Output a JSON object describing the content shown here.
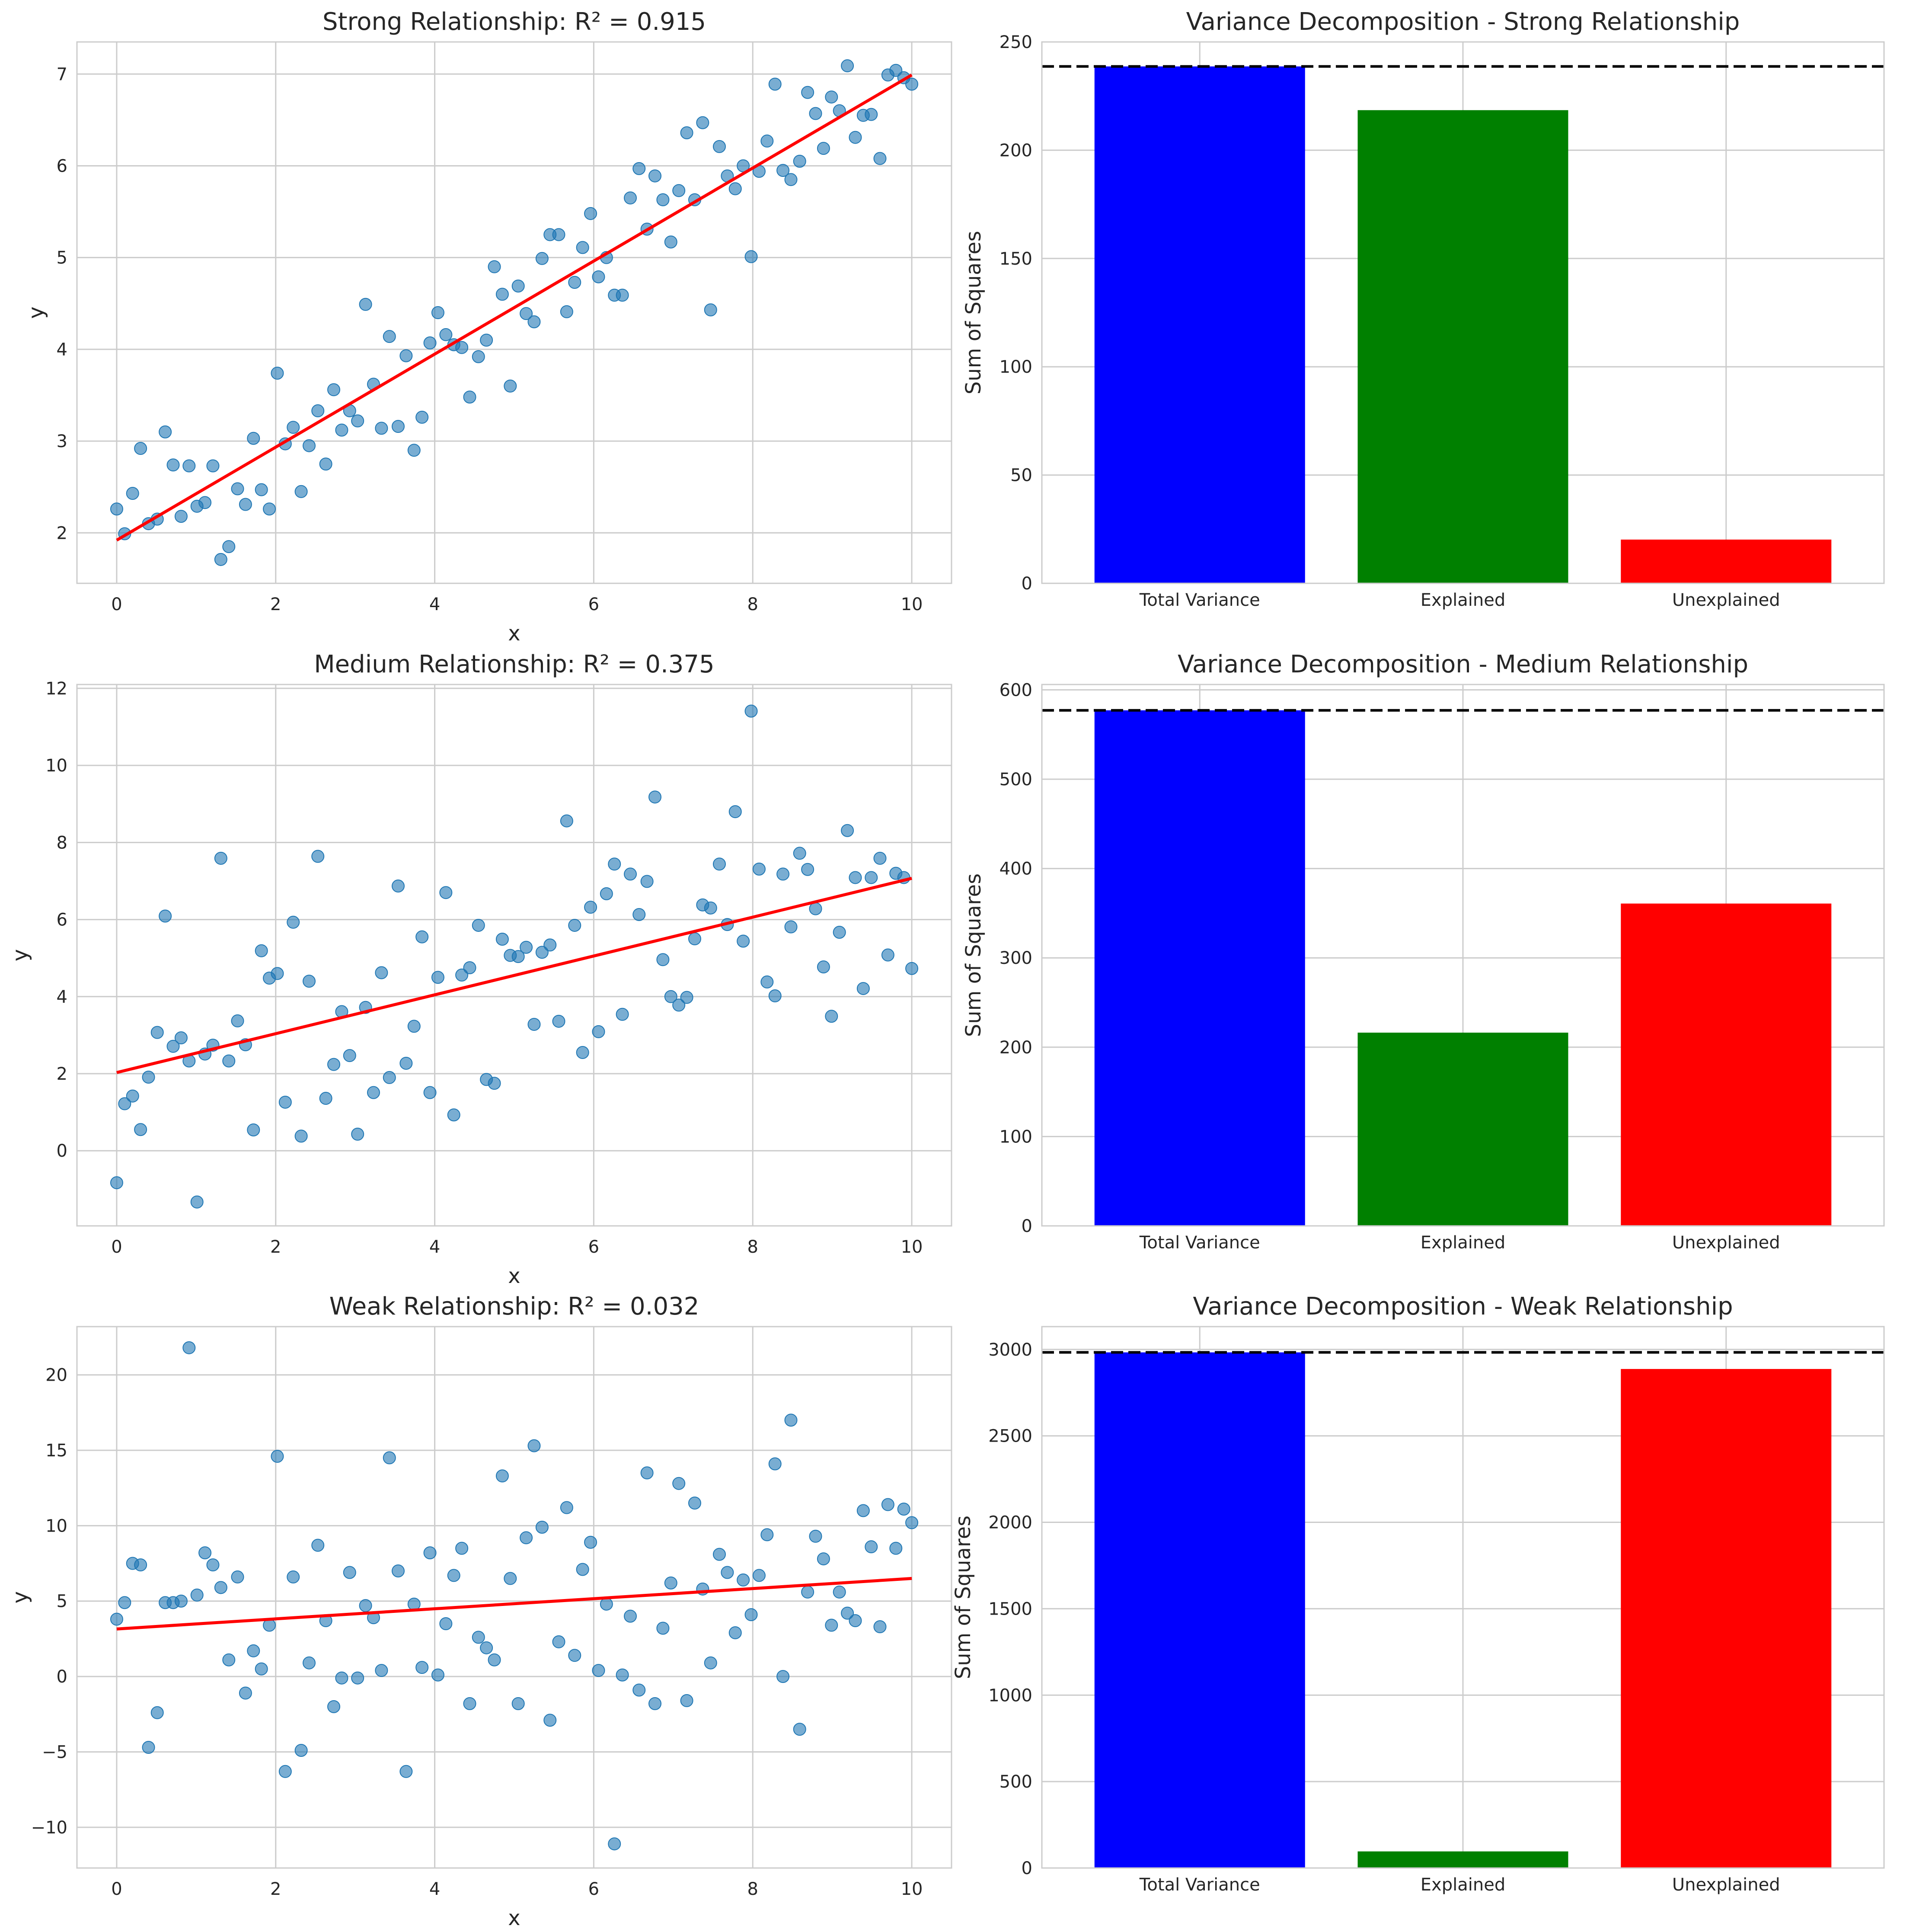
{
  "chart_data": [
    {
      "type": "scatter",
      "title": "Strong Relationship: R² = 0.915",
      "xlabel": "x",
      "ylabel": "y",
      "xlim": [
        -0.5,
        10.5
      ],
      "ylim": [
        1.45,
        7.35
      ],
      "xticks": [
        0,
        2,
        4,
        6,
        8,
        10
      ],
      "yticks": [
        2,
        3,
        4,
        5,
        6,
        7
      ],
      "grid": true,
      "point_color": "#1f77b4",
      "line_color": "#ff0000",
      "fit_line": {
        "x": [
          0,
          10
        ],
        "y": [
          1.92,
          6.99
        ]
      },
      "x": [
        0.0,
        0.1,
        0.2,
        0.3,
        0.4,
        0.51,
        0.61,
        0.71,
        0.81,
        0.91,
        1.01,
        1.11,
        1.21,
        1.31,
        1.41,
        1.52,
        1.62,
        1.72,
        1.82,
        1.92,
        2.02,
        2.12,
        2.22,
        2.32,
        2.42,
        2.53,
        2.63,
        2.73,
        2.83,
        2.93,
        3.03,
        3.13,
        3.23,
        3.33,
        3.43,
        3.54,
        3.64,
        3.74,
        3.84,
        3.94,
        4.04,
        4.14,
        4.24,
        4.34,
        4.44,
        4.55,
        4.65,
        4.75,
        4.85,
        4.95,
        5.05,
        5.15,
        5.25,
        5.35,
        5.45,
        5.56,
        5.66,
        5.76,
        5.86,
        5.96,
        6.06,
        6.16,
        6.26,
        6.36,
        6.46,
        6.57,
        6.67,
        6.77,
        6.87,
        6.97,
        7.07,
        7.17,
        7.27,
        7.37,
        7.47,
        7.58,
        7.68,
        7.78,
        7.88,
        7.98,
        8.08,
        8.18,
        8.28,
        8.38,
        8.48,
        8.59,
        8.69,
        8.79,
        8.89,
        8.99,
        9.09,
        9.19,
        9.29,
        9.39,
        9.49,
        9.6,
        9.7,
        9.8,
        9.9,
        10.0
      ],
      "y": [
        2.26,
        1.99,
        2.43,
        2.92,
        2.1,
        2.15,
        3.1,
        2.74,
        2.18,
        2.73,
        2.29,
        2.33,
        2.73,
        1.71,
        1.85,
        2.48,
        2.31,
        3.03,
        2.47,
        2.26,
        3.74,
        2.97,
        3.15,
        2.45,
        2.95,
        3.33,
        2.75,
        3.56,
        3.12,
        3.33,
        3.22,
        4.49,
        3.62,
        3.14,
        4.14,
        3.16,
        3.93,
        2.9,
        3.26,
        4.07,
        4.4,
        4.16,
        4.05,
        4.02,
        3.48,
        3.92,
        4.1,
        4.9,
        4.6,
        3.6,
        4.69,
        4.39,
        4.3,
        4.99,
        5.25,
        5.25,
        4.41,
        4.73,
        5.11,
        5.48,
        4.79,
        5.0,
        4.59,
        4.59,
        5.65,
        5.97,
        5.31,
        5.89,
        5.63,
        5.17,
        5.73,
        6.36,
        5.63,
        6.47,
        4.43,
        6.21,
        5.89,
        5.75,
        6.0,
        5.01,
        5.94,
        6.27,
        6.89,
        5.95,
        5.85,
        6.05,
        6.8,
        6.57,
        6.19,
        6.75,
        6.6,
        7.09,
        6.31,
        6.55,
        6.56,
        6.08,
        6.99,
        7.04,
        6.96,
        6.89
      ]
    },
    {
      "type": "bar",
      "title": "Variance Decomposition - Strong Relationship",
      "xlabel": "",
      "ylabel": "Sum of Squares",
      "categories": [
        "Total Variance",
        "Explained",
        "Unexplained"
      ],
      "values": [
        238.7,
        218.5,
        20.2
      ],
      "colors": [
        "#0000ff",
        "#008000",
        "#ff0000"
      ],
      "ylim": [
        0,
        250
      ],
      "yticks": [
        0,
        50,
        100,
        150,
        200,
        250
      ],
      "reference_line": 238.7,
      "grid": true
    },
    {
      "type": "scatter",
      "title": "Medium Relationship: R² = 0.375",
      "xlabel": "x",
      "ylabel": "y",
      "xlim": [
        -0.5,
        10.5
      ],
      "ylim": [
        -1.95,
        12.1
      ],
      "xticks": [
        0,
        2,
        4,
        6,
        8,
        10
      ],
      "yticks": [
        0,
        2,
        4,
        6,
        8,
        10,
        12
      ],
      "grid": true,
      "point_color": "#1f77b4",
      "line_color": "#ff0000",
      "fit_line": {
        "x": [
          0,
          10
        ],
        "y": [
          2.03,
          7.07
        ]
      },
      "x": [
        0.0,
        0.1,
        0.2,
        0.3,
        0.4,
        0.51,
        0.61,
        0.71,
        0.81,
        0.91,
        1.01,
        1.11,
        1.21,
        1.31,
        1.41,
        1.52,
        1.62,
        1.72,
        1.82,
        1.92,
        2.02,
        2.12,
        2.22,
        2.32,
        2.42,
        2.53,
        2.63,
        2.73,
        2.83,
        2.93,
        3.03,
        3.13,
        3.23,
        3.33,
        3.43,
        3.54,
        3.64,
        3.74,
        3.84,
        3.94,
        4.04,
        4.14,
        4.24,
        4.34,
        4.44,
        4.55,
        4.65,
        4.75,
        4.85,
        4.95,
        5.05,
        5.15,
        5.25,
        5.35,
        5.45,
        5.56,
        5.66,
        5.76,
        5.86,
        5.96,
        6.06,
        6.16,
        6.26,
        6.36,
        6.46,
        6.57,
        6.67,
        6.77,
        6.87,
        6.97,
        7.07,
        7.17,
        7.27,
        7.37,
        7.47,
        7.58,
        7.68,
        7.78,
        7.88,
        7.98,
        8.08,
        8.18,
        8.28,
        8.38,
        8.48,
        8.59,
        8.69,
        8.79,
        8.89,
        8.99,
        9.09,
        9.19,
        9.29,
        9.39,
        9.49,
        9.6,
        9.7,
        9.8,
        9.9,
        10.0
      ],
      "y": [
        -0.83,
        1.22,
        1.42,
        0.55,
        1.91,
        3.07,
        6.09,
        2.71,
        2.93,
        2.33,
        -1.33,
        2.51,
        2.74,
        7.59,
        2.33,
        3.37,
        2.75,
        0.54,
        5.19,
        4.48,
        4.6,
        1.26,
        5.93,
        0.38,
        4.4,
        7.64,
        1.36,
        2.24,
        3.61,
        2.47,
        0.43,
        3.72,
        1.51,
        4.62,
        1.9,
        6.87,
        2.27,
        3.23,
        5.55,
        1.51,
        4.5,
        6.7,
        0.93,
        4.56,
        4.75,
        5.85,
        1.85,
        1.75,
        5.49,
        5.07,
        5.04,
        5.28,
        3.28,
        5.15,
        5.34,
        3.36,
        8.56,
        5.85,
        2.55,
        6.32,
        3.09,
        6.67,
        7.44,
        3.54,
        7.18,
        6.13,
        6.99,
        9.18,
        4.96,
        4.0,
        3.78,
        3.98,
        5.5,
        6.38,
        6.3,
        7.44,
        5.87,
        8.8,
        5.44,
        11.41,
        7.31,
        4.38,
        4.02,
        7.18,
        5.81,
        7.72,
        7.3,
        6.28,
        4.77,
        3.49,
        5.67,
        8.31,
        7.09,
        4.21,
        7.09,
        7.59,
        5.08,
        7.2,
        7.09,
        4.73
      ]
    },
    {
      "type": "bar",
      "title": "Variance Decomposition - Medium Relationship",
      "xlabel": "",
      "ylabel": "Sum of Squares",
      "categories": [
        "Total Variance",
        "Explained",
        "Unexplained"
      ],
      "values": [
        577.1,
        216.3,
        360.8
      ],
      "colors": [
        "#0000ff",
        "#008000",
        "#ff0000"
      ],
      "ylim": [
        0,
        606
      ],
      "yticks": [
        0,
        100,
        200,
        300,
        400,
        500,
        600
      ],
      "reference_line": 577.1,
      "grid": true
    },
    {
      "type": "scatter",
      "title": "Weak Relationship: R² = 0.032",
      "xlabel": "x",
      "ylabel": "y",
      "xlim": [
        -0.5,
        10.5
      ],
      "ylim": [
        -12.7,
        23.2
      ],
      "xticks": [
        0,
        2,
        4,
        6,
        8,
        10
      ],
      "yticks": [
        -10,
        -5,
        0,
        5,
        10,
        15,
        20
      ],
      "grid": true,
      "point_color": "#1f77b4",
      "line_color": "#ff0000",
      "fit_line": {
        "x": [
          0,
          10
        ],
        "y": [
          3.15,
          6.5
        ]
      },
      "x": [
        0.0,
        0.1,
        0.2,
        0.3,
        0.4,
        0.51,
        0.61,
        0.71,
        0.81,
        0.91,
        1.01,
        1.11,
        1.21,
        1.31,
        1.41,
        1.52,
        1.62,
        1.72,
        1.82,
        1.92,
        2.02,
        2.12,
        2.22,
        2.32,
        2.42,
        2.53,
        2.63,
        2.73,
        2.83,
        2.93,
        3.03,
        3.13,
        3.23,
        3.33,
        3.43,
        3.54,
        3.64,
        3.74,
        3.84,
        3.94,
        4.04,
        4.14,
        4.24,
        4.34,
        4.44,
        4.55,
        4.65,
        4.75,
        4.85,
        4.95,
        5.05,
        5.15,
        5.25,
        5.35,
        5.45,
        5.56,
        5.66,
        5.76,
        5.86,
        5.96,
        6.06,
        6.16,
        6.26,
        6.36,
        6.46,
        6.57,
        6.67,
        6.77,
        6.87,
        6.97,
        7.07,
        7.17,
        7.27,
        7.37,
        7.47,
        7.58,
        7.68,
        7.78,
        7.88,
        7.98,
        8.08,
        8.18,
        8.28,
        8.38,
        8.48,
        8.59,
        8.69,
        8.79,
        8.89,
        8.99,
        9.09,
        9.19,
        9.29,
        9.39,
        9.49,
        9.6,
        9.7,
        9.8,
        9.9,
        10.0
      ],
      "y": [
        3.8,
        4.9,
        7.5,
        7.4,
        -4.7,
        -2.4,
        4.9,
        4.9,
        5.0,
        21.8,
        5.4,
        8.2,
        7.4,
        5.9,
        1.1,
        6.6,
        -1.1,
        1.7,
        0.5,
        3.4,
        14.6,
        -6.3,
        6.6,
        -4.9,
        0.9,
        8.7,
        3.7,
        -2.0,
        -0.1,
        6.9,
        -0.1,
        4.7,
        3.9,
        0.4,
        14.5,
        7.0,
        -6.3,
        4.8,
        0.6,
        8.2,
        0.1,
        3.5,
        6.7,
        8.5,
        -1.8,
        2.6,
        1.9,
        1.1,
        13.3,
        6.5,
        -1.8,
        9.2,
        15.3,
        9.9,
        -2.9,
        2.3,
        11.2,
        1.4,
        7.1,
        8.9,
        0.4,
        4.8,
        -11.1,
        0.1,
        4.0,
        -0.9,
        13.5,
        -1.8,
        3.2,
        6.2,
        12.8,
        -1.6,
        11.5,
        5.8,
        0.9,
        8.1,
        6.9,
        2.9,
        6.4,
        4.1,
        6.7,
        9.4,
        14.1,
        0.0,
        17.0,
        -3.5,
        5.6,
        9.3,
        7.8,
        3.4,
        5.6,
        4.2,
        3.7,
        11.0,
        8.6,
        3.3,
        11.4,
        8.5,
        11.1,
        10.2
      ]
    },
    {
      "type": "bar",
      "title": "Variance Decomposition - Weak Relationship",
      "xlabel": "",
      "ylabel": "Sum of Squares",
      "categories": [
        "Total Variance",
        "Explained",
        "Unexplained"
      ],
      "values": [
        2983,
        96,
        2887
      ],
      "colors": [
        "#0000ff",
        "#008000",
        "#ff0000"
      ],
      "ylim": [
        0,
        3132
      ],
      "yticks": [
        0,
        500,
        1000,
        1500,
        2000,
        2500,
        3000
      ],
      "reference_line": 2983,
      "grid": true
    }
  ]
}
